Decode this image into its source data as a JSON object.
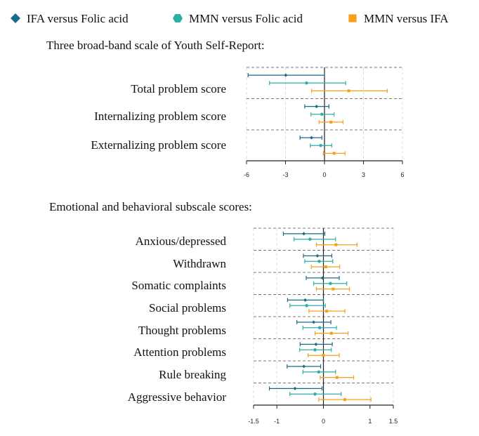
{
  "legend": [
    {
      "name": "IFA versus Folic acid",
      "color": "#1a6a8a",
      "marker": "diamond"
    },
    {
      "name": "MMN versus Folic acid",
      "color": "#2bb0a4",
      "marker": "hexagon"
    },
    {
      "name": "MMN versus IFA",
      "color": "#f5a01a",
      "marker": "square"
    }
  ],
  "chart_data": [
    {
      "type": "forest",
      "title": "Three broad-band scale of Youth Self-Report:",
      "xlim": [
        -6,
        6
      ],
      "xticks": [
        -6,
        -3,
        0,
        3,
        6
      ],
      "xtick_labels": [
        "-6",
        "-3",
        "0",
        "3",
        "6"
      ],
      "categories": [
        "Total problem score",
        "Internalizing problem score",
        "Externalizing problem score"
      ],
      "series": [
        {
          "name": "IFA versus Folic acid",
          "estimate": [
            -2.98,
            -0.61,
            -1.0
          ],
          "lower": [
            -5.88,
            -1.52,
            -1.88
          ],
          "upper": [
            0.0,
            0.34,
            -0.2
          ]
        },
        {
          "name": "MMN versus Folic acid",
          "estimate": [
            -1.38,
            -0.2,
            -0.29
          ],
          "lower": [
            -4.23,
            -1.04,
            -1.09
          ],
          "upper": [
            1.63,
            0.74,
            0.56
          ]
        },
        {
          "name": "MMN versus IFA",
          "estimate": [
            1.87,
            0.5,
            0.74
          ],
          "lower": [
            -0.99,
            -0.41,
            -0.09
          ],
          "upper": [
            4.83,
            1.42,
            1.58
          ]
        }
      ]
    },
    {
      "type": "forest",
      "title": "Emotional and behavioral subscale scores:",
      "xlim": [
        -1.5,
        1.5
      ],
      "xticks": [
        -1.5,
        -1,
        0,
        1,
        1.5
      ],
      "xtick_labels": [
        "-1.5",
        "-1",
        "0",
        "1",
        "1.5"
      ],
      "categories": [
        "Anxious/depressed",
        "Withdrawn",
        "Somatic complaints",
        "Social problems",
        "Thought problems",
        "Attention problems",
        "Rule breaking",
        "Aggressive behavior"
      ],
      "series": [
        {
          "name": "IFA versus Folic acid",
          "estimate": [
            -0.42,
            -0.13,
            -0.02,
            -0.39,
            -0.21,
            -0.16,
            -0.42,
            -0.61
          ],
          "lower": [
            -0.86,
            -0.43,
            -0.37,
            -0.77,
            -0.57,
            -0.5,
            -0.78,
            -1.16
          ],
          "upper": [
            0.03,
            0.18,
            0.34,
            0.0,
            0.16,
            0.19,
            -0.06,
            -0.03
          ]
        },
        {
          "name": "MMN versus Folic acid",
          "estimate": [
            -0.29,
            -0.09,
            0.15,
            -0.36,
            -0.08,
            -0.18,
            -0.1,
            -0.18
          ],
          "lower": [
            -0.63,
            -0.4,
            -0.21,
            -0.72,
            -0.44,
            -0.51,
            -0.44,
            -0.72
          ],
          "upper": [
            0.26,
            0.2,
            0.5,
            0.04,
            0.28,
            0.17,
            0.26,
            0.38
          ]
        },
        {
          "name": "MMN versus IFA",
          "estimate": [
            0.27,
            0.05,
            0.21,
            0.07,
            0.17,
            0.0,
            0.29,
            0.46
          ],
          "lower": [
            -0.15,
            -0.26,
            -0.15,
            -0.31,
            -0.18,
            -0.33,
            -0.07,
            -0.1
          ],
          "upper": [
            0.72,
            0.35,
            0.56,
            0.46,
            0.53,
            0.34,
            0.65,
            1.02
          ]
        }
      ]
    }
  ]
}
